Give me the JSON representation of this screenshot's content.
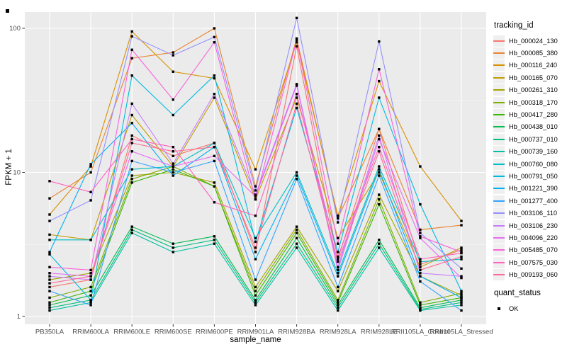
{
  "figure": {
    "bg": "#FFFFFF",
    "panel_bg": "#EBEBEB",
    "grid_color": "#FFFFFF",
    "axis_text_color": "#4D4D4D",
    "point_color": "#000000"
  },
  "chart_data": {
    "type": "line",
    "title": "",
    "xlabel": "sample_name",
    "ylabel": "FPKM + 1",
    "y_scale": "log10",
    "ylim": [
      0.9,
      130
    ],
    "y_ticks": [
      1,
      10,
      100
    ],
    "y_minor_ticks": [
      3.1623,
      31.623
    ],
    "grid": "on",
    "legend_position": "right",
    "point_shape": "filled-square",
    "categories": [
      "PB350LA",
      "RRIM600LA",
      "RRIM600LE",
      "RRIM600SE",
      "RRIM600PE",
      "RRIM901LA",
      "RRIM928BA",
      "RRIM928LA",
      "RRIM928LE",
      "RRII105LA_Control",
      "RRII105LA_Stressed"
    ],
    "series": [
      {
        "name": "Hb_000024_130",
        "color": "#F8766D",
        "values": [
          1.6,
          1.8,
          18,
          13,
          16,
          2.8,
          75,
          2.5,
          20,
          2.3,
          2.9
        ]
      },
      {
        "name": "Hb_000085_380",
        "color": "#EA8331",
        "values": [
          6.6,
          10,
          62,
          68,
          100,
          8,
          85,
          4.8,
          20,
          4.0,
          4.3
        ]
      },
      {
        "name": "Hb_000116_240",
        "color": "#D89000",
        "values": [
          5.1,
          11,
          95,
          50,
          45,
          10.5,
          80,
          5.0,
          43,
          11,
          4.6
        ]
      },
      {
        "name": "Hb_000165_070",
        "color": "#C09B00",
        "values": [
          3.7,
          3.4,
          25,
          11,
          33,
          6.5,
          33,
          3.5,
          10,
          2.2,
          3.0
        ]
      },
      {
        "name": "Hb_000261_310",
        "color": "#A3A500",
        "values": [
          1.8,
          2.0,
          9.5,
          10,
          8.5,
          1.6,
          4.2,
          1.5,
          7.0,
          1.9,
          1.4
        ]
      },
      {
        "name": "Hb_000318_170",
        "color": "#7CAE00",
        "values": [
          1.35,
          1.6,
          9.0,
          11,
          8.0,
          1.5,
          4.0,
          1.3,
          6.5,
          1.25,
          1.45
        ]
      },
      {
        "name": "Hb_000417_280",
        "color": "#39B600",
        "values": [
          1.25,
          1.5,
          8.5,
          10.5,
          8.0,
          1.4,
          3.8,
          1.25,
          6.0,
          1.2,
          1.35
        ]
      },
      {
        "name": "Hb_000438_010",
        "color": "#00BB4E",
        "values": [
          1.2,
          1.4,
          4.2,
          3.2,
          3.6,
          1.3,
          3.5,
          1.2,
          3.4,
          1.15,
          1.3
        ]
      },
      {
        "name": "Hb_000737_010",
        "color": "#00BF7D",
        "values": [
          1.15,
          1.3,
          4.0,
          3.0,
          3.4,
          1.25,
          3.2,
          1.15,
          3.2,
          1.12,
          1.25
        ]
      },
      {
        "name": "Hb_000739_160",
        "color": "#00C1A3",
        "values": [
          1.1,
          1.25,
          3.8,
          2.8,
          3.2,
          1.2,
          3.0,
          1.1,
          3.0,
          1.1,
          1.2
        ]
      },
      {
        "name": "Hb_000760_080",
        "color": "#00BFC4",
        "values": [
          3.4,
          3.4,
          10.5,
          11,
          16,
          3.5,
          10,
          2.0,
          11,
          2.4,
          2.5
        ]
      },
      {
        "name": "Hb_000791_050",
        "color": "#00BAE0",
        "values": [
          2.7,
          1.3,
          47,
          25,
          47,
          3.3,
          28,
          2.8,
          33,
          6.0,
          1.5
        ]
      },
      {
        "name": "Hb_001221_390",
        "color": "#00B0F6",
        "values": [
          2.8,
          11.4,
          22,
          9.5,
          15,
          2.5,
          9.5,
          1.9,
          10.5,
          1.9,
          1.35
        ]
      },
      {
        "name": "Hb_001277_400",
        "color": "#35A2FF",
        "values": [
          1.5,
          1.2,
          12,
          10,
          12,
          1.8,
          9.0,
          1.6,
          9.5,
          1.75,
          1.1
        ]
      },
      {
        "name": "Hb_003106_110",
        "color": "#9590FF",
        "values": [
          4.6,
          6.4,
          88,
          65,
          87,
          7.5,
          118,
          4.5,
          81,
          3.8,
          2.15
        ]
      },
      {
        "name": "Hb_003106_230",
        "color": "#C77CFF",
        "values": [
          1.9,
          1.8,
          30,
          11.5,
          35,
          7.0,
          41,
          2.2,
          18,
          2.0,
          1.9
        ]
      },
      {
        "name": "Hb_004096_220",
        "color": "#E76BF3",
        "values": [
          2.0,
          1.9,
          14,
          11,
          13,
          6.8,
          40,
          2.1,
          17,
          3.5,
          1.85
        ]
      },
      {
        "name": "Hb_005485_070",
        "color": "#FA62DB",
        "values": [
          2.2,
          2.1,
          71,
          32,
          80,
          6.5,
          83,
          3.2,
          52,
          3.6,
          2.8
        ]
      },
      {
        "name": "Hb_007575_030",
        "color": "#FF62BC",
        "values": [
          8.7,
          7.3,
          17,
          15,
          6.2,
          5.0,
          35,
          2.6,
          15,
          2.5,
          2.75
        ]
      },
      {
        "name": "Hb_009193_060",
        "color": "#FF6A98",
        "values": [
          1.7,
          1.9,
          16,
          14,
          15,
          3.0,
          30,
          2.4,
          14,
          2.1,
          2.6
        ]
      }
    ]
  },
  "legend": {
    "tracking_title": "tracking_id",
    "quant_title": "quant_status",
    "quant_items": [
      {
        "label": "OK"
      }
    ],
    "key_fill": "#EFEFEF"
  }
}
